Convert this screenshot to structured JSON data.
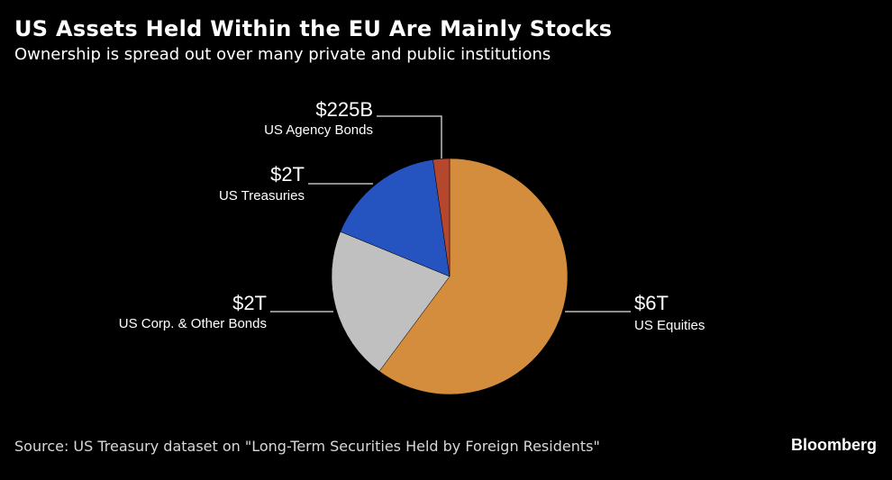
{
  "header": {
    "title": "US Assets Held Within the EU Are Mainly Stocks",
    "subtitle": "Ownership is spread out over many private and public institutions"
  },
  "chart_data": {
    "type": "pie",
    "title": "US Assets Held Within the EU Are Mainly Stocks",
    "subtitle": "Ownership is spread out over many private and public institutions",
    "slices": [
      {
        "name": "US Equities",
        "value": 6,
        "value_label": "$6T",
        "color": "#d38d3c"
      },
      {
        "name": "US Corp. & Other Bonds",
        "value": 2.1,
        "value_label": "$2T",
        "color": "#c0c0c0"
      },
      {
        "name": "US Treasuries",
        "value": 1.65,
        "value_label": "$2T",
        "color": "#2553bf"
      },
      {
        "name": "US Agency Bonds",
        "value": 0.225,
        "value_label": "$225B",
        "color": "#b5482c"
      }
    ],
    "start": "12 o'clock",
    "direction": "clockwise",
    "units": "USD"
  },
  "footer": {
    "source": "Source: US Treasury dataset on \"Long-Term Securities Held by Foreign Residents\"",
    "brand": "Bloomberg"
  }
}
